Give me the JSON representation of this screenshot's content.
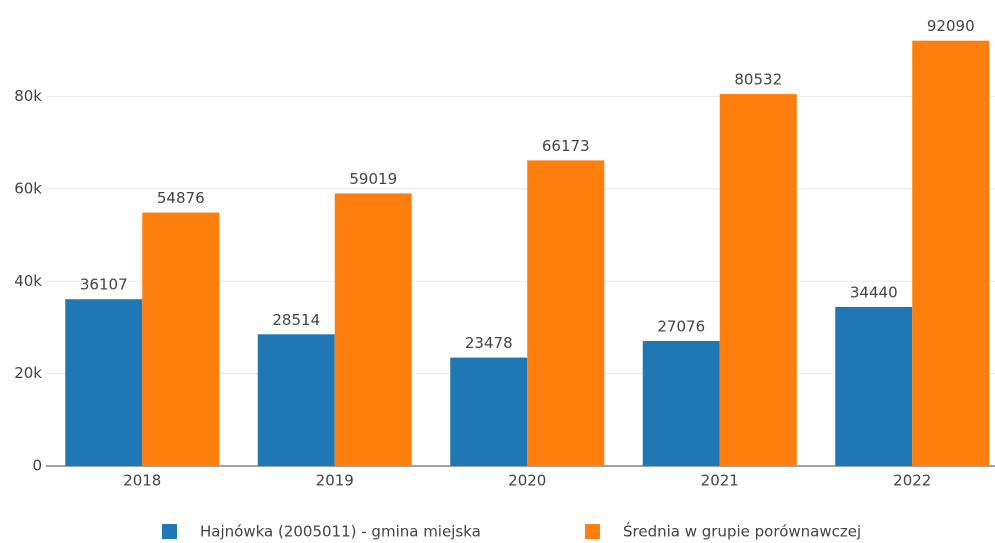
{
  "chart_data": {
    "type": "bar",
    "categories": [
      "2018",
      "2019",
      "2020",
      "2021",
      "2022"
    ],
    "series": [
      {
        "name": "Hajnówka (2005011) - gmina miejska",
        "color": "#1f77b4",
        "values": [
          36107,
          28514,
          23478,
          27076,
          34440
        ]
      },
      {
        "name": "Średnia w grupie porównawczej",
        "color": "#ff7f0e",
        "values": [
          54876,
          59019,
          66173,
          80532,
          92090
        ]
      }
    ],
    "ylim": [
      0,
      97000
    ],
    "yticks": [
      0,
      {
        "value": 20000,
        "label": "20k"
      },
      {
        "value": 40000,
        "label": "40k"
      },
      {
        "value": 60000,
        "label": "60k"
      },
      {
        "value": 80000,
        "label": "80k"
      }
    ],
    "grid": true
  }
}
